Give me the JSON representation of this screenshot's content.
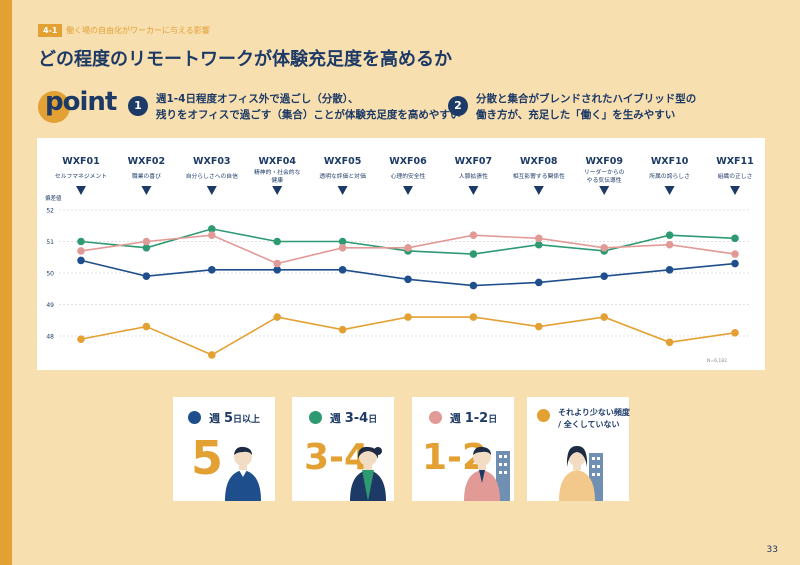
{
  "header": {
    "section_tag": "4-1",
    "section_title": "働く場の自由化がワーカーに与える影響",
    "page_title": "どの程度のリモートワークが体験充足度を高めるか"
  },
  "point": {
    "logo_text": "point",
    "items": [
      {
        "num": "1",
        "line1": "週1-4日程度オフィス外で過ごし（分散）、",
        "line2": "残りをオフィスで過ごす（集合）ことが体験充足度を高めやすい"
      },
      {
        "num": "2",
        "line1": "分散と集合がブレンドされたハイブリッド型の",
        "line2": "働き方が、充足した「働く」を生みやすい"
      }
    ]
  },
  "chart_data": {
    "type": "line",
    "categories": [
      "WXF01",
      "WXF02",
      "WXF03",
      "WXF04",
      "WXF05",
      "WXF06",
      "WXF07",
      "WXF08",
      "WXF09",
      "WXF10",
      "WXF11"
    ],
    "category_descriptions": [
      [
        "セルフマネジメント"
      ],
      [
        "職業の喜び"
      ],
      [
        "自分らしさへの自信"
      ],
      [
        "精神的・社会的な",
        "健康"
      ],
      [
        "透明な評価と対価"
      ],
      [
        "心理的安全性"
      ],
      [
        "人脈拡張性"
      ],
      [
        "相互影響する関係性"
      ],
      [
        "リーダーからの",
        "やる気伝導性"
      ],
      [
        "所属の誇らしさ"
      ],
      [
        "組織の正しさ"
      ]
    ],
    "ylabel": "偏差値",
    "yticks": [
      48,
      49,
      50,
      51,
      52
    ],
    "ylim": [
      47.4,
      52.1
    ],
    "grid": true,
    "note": "N=6,182",
    "series": [
      {
        "name": "週5日以上",
        "color": "#1f4e8c",
        "values": [
          50.4,
          49.9,
          50.1,
          50.1,
          50.1,
          49.8,
          49.6,
          49.7,
          49.9,
          50.1,
          50.3
        ]
      },
      {
        "name": "週3-4日",
        "color": "#2e9a72",
        "values": [
          51.0,
          50.8,
          51.4,
          51.0,
          51.0,
          50.7,
          50.6,
          50.9,
          50.7,
          51.2,
          51.1
        ]
      },
      {
        "name": "週1-2日",
        "color": "#e29a97",
        "values": [
          50.7,
          51.0,
          51.2,
          50.3,
          50.8,
          50.8,
          51.2,
          51.1,
          50.8,
          50.9,
          50.6
        ]
      },
      {
        "name": "それより少ない頻度/全くしていない",
        "color": "#e3a033",
        "values": [
          47.9,
          48.3,
          47.4,
          48.6,
          48.2,
          48.6,
          48.6,
          48.3,
          48.6,
          47.8,
          48.1
        ]
      }
    ]
  },
  "legend": {
    "cards": [
      {
        "color": "#1f4e8c",
        "prefix": "週",
        "main": "5",
        "suffix": "日以上",
        "big": "5",
        "big_color": "#e3a033"
      },
      {
        "color": "#2e9a72",
        "prefix": "週",
        "main": "3-4",
        "suffix": "日",
        "big": "3-4",
        "big_color": "#e3a033"
      },
      {
        "color": "#e29a97",
        "prefix": "週",
        "main": "1-2",
        "suffix": "日",
        "big": "1-2",
        "big_color": "#e3a033"
      },
      {
        "color": "#e3a033",
        "line1": "それより少ない頻度",
        "line2": "/ 全くしていない"
      }
    ]
  },
  "footer": {
    "page_number": "33"
  },
  "colors": {
    "accent": "#e3a033",
    "navy": "#1d3a66",
    "background": "#f8dfb0"
  }
}
